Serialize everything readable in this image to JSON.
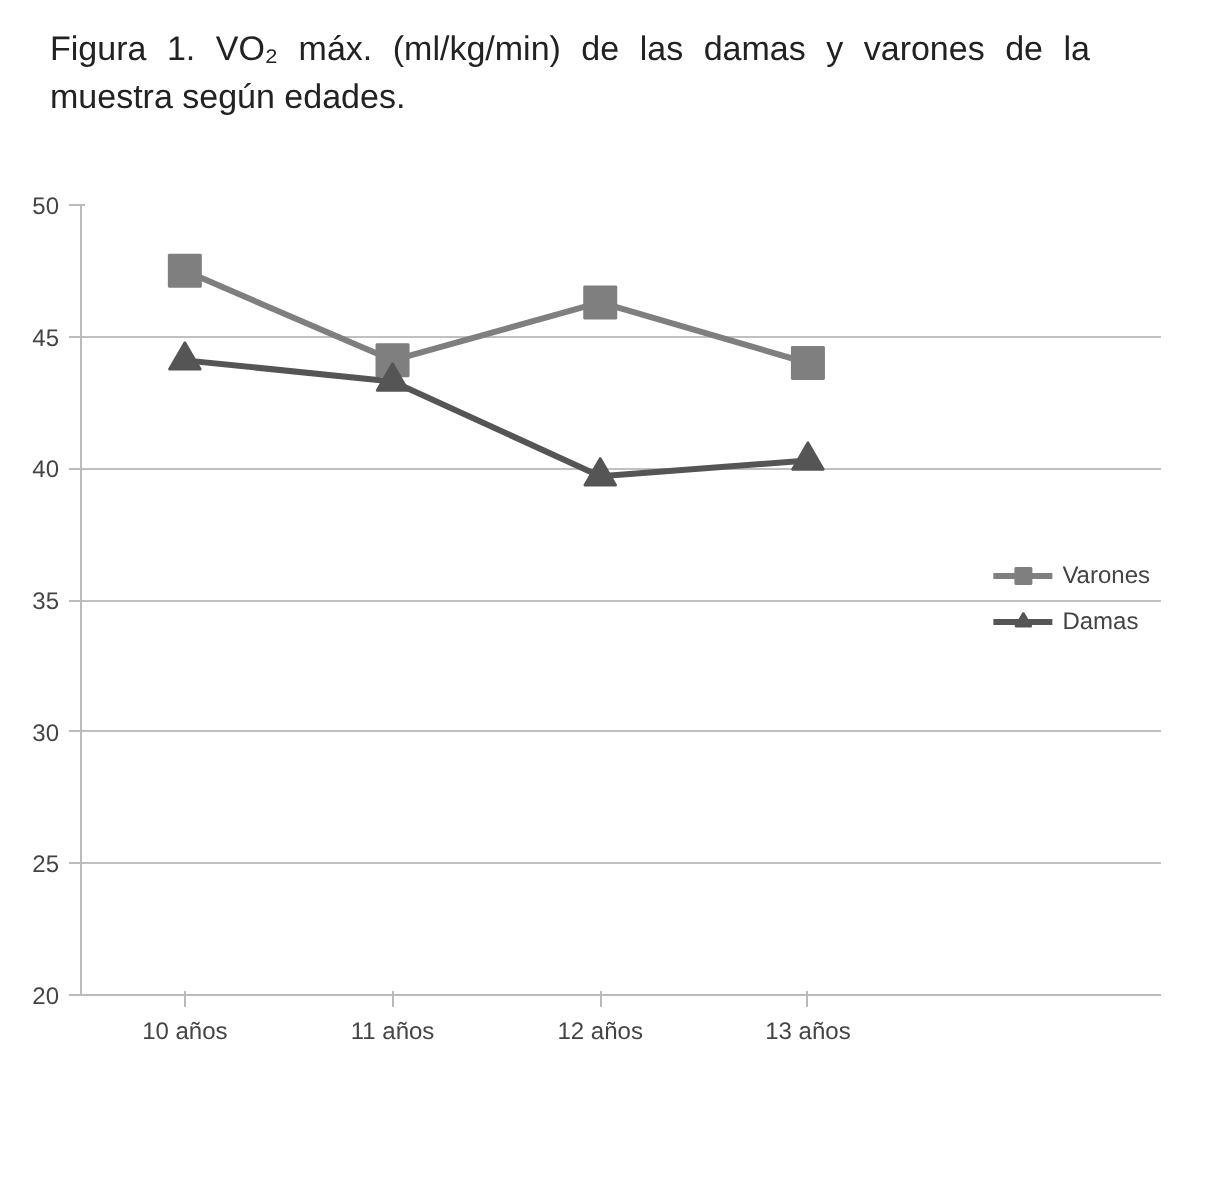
{
  "chart_data": {
    "type": "line",
    "title": "Figura 1. VO₂ máx. (ml/kg/min) de las damas y varones de la muestra según edades.",
    "categories": [
      "10 años",
      "11 años",
      "12 años",
      "13 años"
    ],
    "series": [
      {
        "name": "Varones",
        "color": "#7f7f7f",
        "marker": "square",
        "values": [
          47.5,
          44.1,
          46.3,
          44.0
        ]
      },
      {
        "name": "Damas",
        "color": "#555555",
        "marker": "triangle",
        "values": [
          44.1,
          43.3,
          39.7,
          40.3
        ]
      }
    ],
    "ylim": [
      20,
      50
    ],
    "yticks": [
      20,
      25,
      30,
      35,
      40,
      45,
      50
    ],
    "grid": "y",
    "legend": "right",
    "line_style": "solid"
  }
}
